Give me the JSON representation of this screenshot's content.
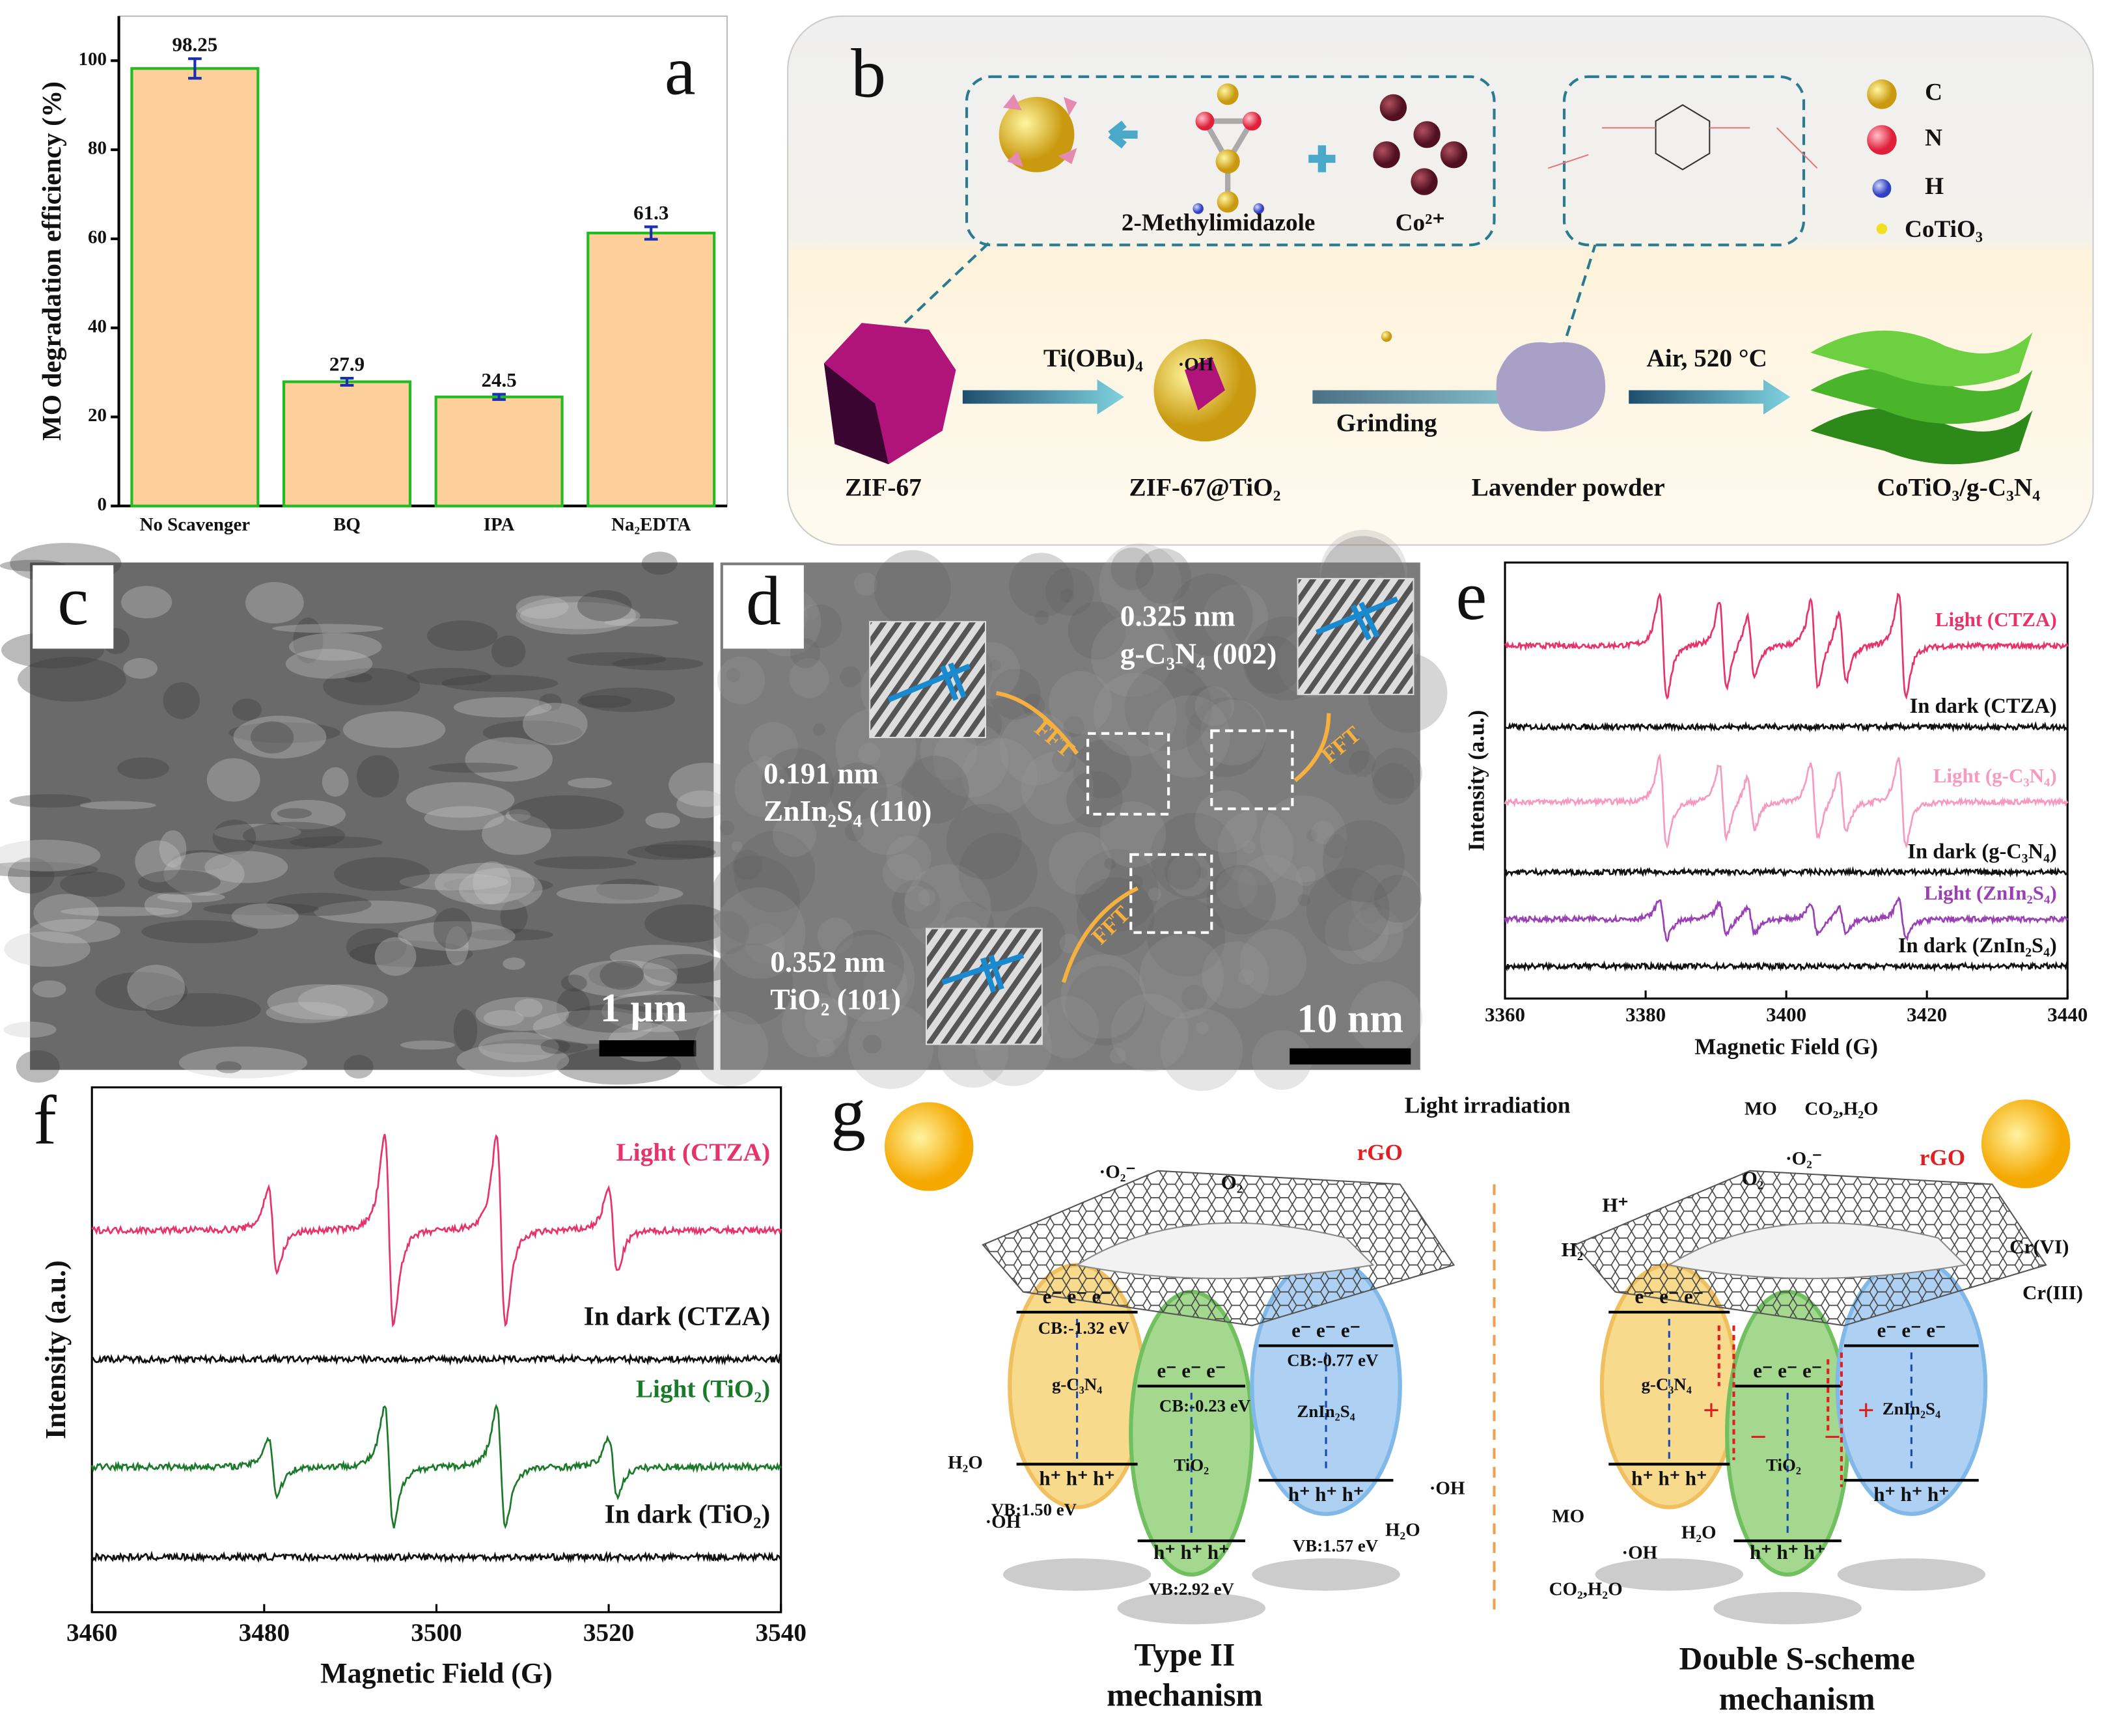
{
  "chart_data": [
    {
      "type": "bar",
      "panel": "a",
      "categories": [
        "No Scavenger",
        "BQ",
        "IPA",
        "Na₂EDTA"
      ],
      "values": [
        98.25,
        27.9,
        24.5,
        61.3
      ],
      "errors": [
        2.2,
        0.8,
        0.6,
        1.4
      ],
      "color": "#fdd09b",
      "edge_color": "#22bb22",
      "error_color": "#1a2fb0",
      "ylabel": "MO degradation efficiency (%)",
      "ylim": [
        0,
        110
      ],
      "yticks": [
        0,
        20,
        40,
        60,
        80,
        100
      ]
    },
    {
      "type": "esr",
      "panel": "e",
      "xlabel": "Magnetic Field (G)",
      "ylabel": "Intensity (a.u.)",
      "xlim": [
        3360,
        3440
      ],
      "xticks": [
        3360,
        3380,
        3400,
        3420,
        3440
      ],
      "ylim": [
        0,
        10
      ],
      "series": [
        {
          "name": "Light (CTZA)",
          "color": "#e8336a",
          "offset": 8.09,
          "peaks": [
            3382.5,
            3391,
            3395,
            3404,
            3408,
            3416.5
          ],
          "amplitudes": [
            1.2,
            1.0,
            0.7,
            1.0,
            0.8,
            1.2
          ]
        },
        {
          "name": "In dark (CTZA)",
          "color": "#111111",
          "offset": 6.23,
          "peaks": [],
          "amplitudes": []
        },
        {
          "name": "Light (g-C₃N₄)",
          "color": "#f79ac0",
          "offset": 4.51,
          "peaks": [
            3382.5,
            3391,
            3395,
            3404,
            3408,
            3416.5
          ],
          "amplitudes": [
            1.0,
            0.85,
            0.6,
            0.85,
            0.7,
            1.0
          ]
        },
        {
          "name": "In dark (g-C₃N₄)",
          "color": "#111111",
          "offset": 2.9,
          "peaks": [],
          "amplitudes": []
        },
        {
          "name": "Light (ZnIn₂S₄)",
          "color": "#9b3fb5",
          "offset": 1.82,
          "peaks": [
            3382.5,
            3391,
            3395,
            3404,
            3408,
            3416.5
          ],
          "amplitudes": [
            0.45,
            0.35,
            0.3,
            0.35,
            0.3,
            0.45
          ]
        },
        {
          "name": "In dark (ZnIn₂S₄)",
          "color": "#111111",
          "offset": 0.74,
          "peaks": [],
          "amplitudes": []
        }
      ]
    },
    {
      "type": "esr",
      "panel": "f",
      "xlabel": "Magnetic Field (G)",
      "ylabel": "Intensity (a.u.)",
      "xlim": [
        3460,
        3540
      ],
      "xticks": [
        3460,
        3480,
        3500,
        3520,
        3540
      ],
      "ylim": [
        0,
        10
      ],
      "series": [
        {
          "name": "Light (CTZA)",
          "color": "#e8336a",
          "offset": 7.28,
          "peaks": [
            3481,
            3494.5,
            3507.5,
            3520.5
          ],
          "amplitudes": [
            0.8,
            1.8,
            1.8,
            0.8
          ]
        },
        {
          "name": "In dark (CTZA)",
          "color": "#111111",
          "offset": 4.82,
          "peaks": [],
          "amplitudes": []
        },
        {
          "name": "Light (TiO₂)",
          "color": "#1a7a2a",
          "offset": 2.77,
          "peaks": [
            3481,
            3494.5,
            3507.5,
            3520.5
          ],
          "amplitudes": [
            0.55,
            1.15,
            1.15,
            0.55
          ]
        },
        {
          "name": "In dark (TiO₂)",
          "color": "#111111",
          "offset": 1.05,
          "peaks": [],
          "amplitudes": []
        }
      ]
    }
  ],
  "diagram_b": {
    "label": "b",
    "ligand": "2-Methylimidazole",
    "cobalt": "Co²⁺",
    "legend": [
      "C",
      "N",
      "H",
      "CoTiO₃"
    ],
    "step1": "Ti(OBu)₄",
    "step2": "Grinding",
    "step3": "Air, 520 °C",
    "stages": [
      "ZIF-67",
      "ZIF-67@TiO₂",
      "Lavender powder",
      "CoTiO₃/g-C₃N₄"
    ]
  },
  "image_c": {
    "label": "c",
    "scale": "1 µm"
  },
  "image_d": {
    "label": "d",
    "fringes": [
      {
        "spacing": "0.325 nm",
        "plane": "g-C₃N₄ (002)"
      },
      {
        "spacing": "0.191 nm",
        "plane": "ZnIn₂S₄ (110)"
      },
      {
        "spacing": "0.352 nm",
        "plane": "TiO₂ (101)"
      }
    ],
    "fft": "FFT",
    "scale": "10 nm"
  },
  "diagram_g": {
    "label": "g",
    "light": "Light irradiation",
    "left": {
      "superoxide": "·O₂⁻",
      "o2": "O₂",
      "rgo": "rGO",
      "electrons": "e⁻ e⁻ e⁻",
      "holes": "h⁺ h⁺ h⁺",
      "cb": [
        "CB:-1.32 eV",
        "CB:-0.23 eV",
        "CB:-0.77 eV"
      ],
      "vb": [
        "VB:1.50 eV",
        "VB:2.92 eV",
        "VB:1.57 eV"
      ],
      "materials": [
        "g-C₃N₄",
        "TiO₂",
        "ZnIn₂S₄"
      ],
      "water": "H₂O",
      "hydroxyl": "·OH",
      "title": [
        "Type II",
        "mechanism"
      ]
    },
    "right": {
      "mo": "MO",
      "products": "CO₂,H₂O",
      "superoxide": "·O₂⁻",
      "o2": "O₂",
      "rgo": "rGO",
      "proton": "H⁺",
      "hydrogen": "H₂",
      "cr6": "Cr(VI)",
      "cr3": "Cr(III)",
      "electrons": "e⁻ e⁻ e⁻",
      "holes": "h⁺ h⁺ h⁺",
      "materials": [
        "g-C₃N₄",
        "TiO₂",
        "ZnIn₂S₄"
      ],
      "water": "H₂O",
      "hydroxyl": "·OH",
      "title": [
        "Double S-scheme",
        "mechanism"
      ]
    }
  }
}
